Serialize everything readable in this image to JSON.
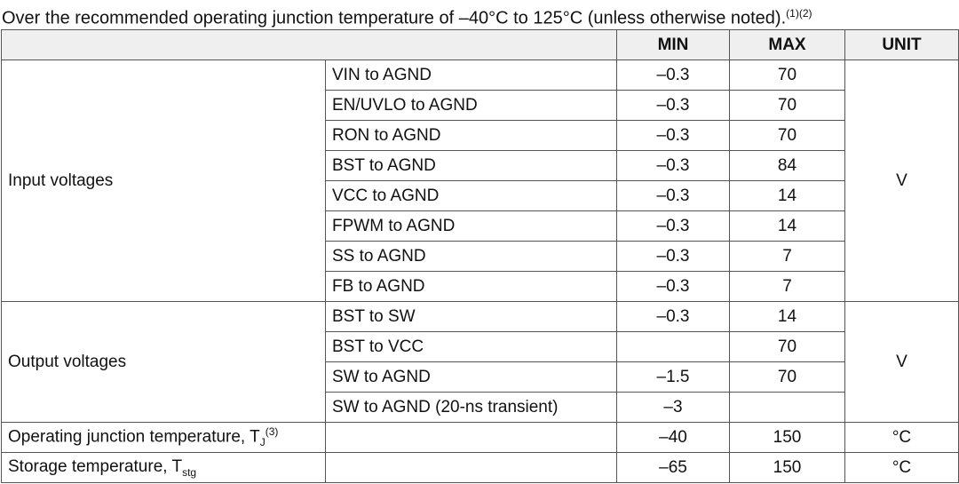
{
  "caption": {
    "text": "Over the recommended operating junction temperature of –40°C to 125°C (unless otherwise noted).",
    "notes": "(1)(2)"
  },
  "table": {
    "header": {
      "min": "MIN",
      "max": "MAX",
      "unit": "UNIT"
    },
    "groups": [
      {
        "label": "Input voltages",
        "unit": "V",
        "rows": [
          {
            "param": "VIN to AGND",
            "min": "–0.3",
            "max": "70"
          },
          {
            "param": "EN/UVLO to AGND",
            "min": "–0.3",
            "max": "70"
          },
          {
            "param": "RON to AGND",
            "min": "–0.3",
            "max": "70"
          },
          {
            "param": "BST to AGND",
            "min": "–0.3",
            "max": "84"
          },
          {
            "param": "VCC to AGND",
            "min": "–0.3",
            "max": "14"
          },
          {
            "param": "FPWM to AGND",
            "min": "–0.3",
            "max": "14"
          },
          {
            "param": "SS to AGND",
            "min": "–0.3",
            "max": "7"
          },
          {
            "param": "FB to AGND",
            "min": "–0.3",
            "max": "7"
          }
        ]
      },
      {
        "label": "Output voltages",
        "unit": "V",
        "rows": [
          {
            "param": "BST to SW",
            "min": "–0.3",
            "max": "14"
          },
          {
            "param": "BST to VCC",
            "max": "70"
          },
          {
            "param": "SW to AGND",
            "min": "–1.5",
            "max": "70"
          },
          {
            "param": "SW to AGND (20-ns transient)",
            "min": "–3"
          }
        ]
      }
    ],
    "singles": [
      {
        "label": {
          "text": "Operating junction temperature, T",
          "sub": "J",
          "note": "(3)"
        },
        "min": "–40",
        "max": "150",
        "unit": "°C"
      },
      {
        "label": {
          "text": "Storage temperature, T",
          "sub": "stg"
        },
        "min": "–65",
        "max": "150",
        "unit": "°C"
      }
    ]
  }
}
